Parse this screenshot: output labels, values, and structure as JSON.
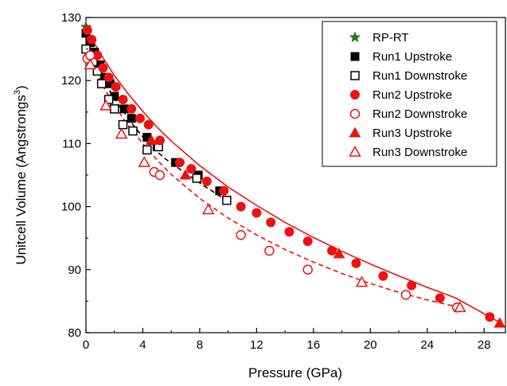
{
  "chart_data": {
    "type": "scatter",
    "title": "",
    "xlabel": "Pressure (GPa)",
    "ylabel_main": "Unitcell Volume (Angstrongs",
    "ylabel_sup": "3",
    "ylabel_tail": ")",
    "xlim": [
      0,
      29.5
    ],
    "ylim": [
      80,
      130
    ],
    "x_ticks": [
      0,
      4,
      8,
      12,
      16,
      20,
      24,
      28
    ],
    "y_ticks": [
      80,
      90,
      100,
      110,
      120,
      130
    ],
    "grid": false,
    "legend_position": "top-right",
    "series": [
      {
        "name": "RP-RT",
        "marker": "star",
        "filled": true,
        "color": "#1a7f1a",
        "x": [
          0.0
        ],
        "y": [
          128.5
        ]
      },
      {
        "name": "Run1 Upstroke",
        "marker": "square",
        "filled": true,
        "color": "#000000",
        "x": [
          0.0,
          0.3,
          0.6,
          1.0,
          1.3,
          1.7,
          2.0,
          2.7,
          3.2,
          4.3,
          5.0,
          6.3,
          7.9,
          9.4
        ],
        "y": [
          127.5,
          126.0,
          124.5,
          122.5,
          120.5,
          119.5,
          117.5,
          115.5,
          114.0,
          111.0,
          109.5,
          107.0,
          105.0,
          102.5
        ]
      },
      {
        "name": "Run1 Downstroke",
        "marker": "square",
        "filled": false,
        "color": "#000000",
        "x": [
          0.0,
          0.5,
          0.8,
          1.1,
          1.6,
          2.0,
          2.6,
          3.3,
          4.3,
          5.1,
          7.8,
          9.9
        ],
        "y": [
          125.0,
          123.0,
          121.5,
          119.5,
          117.0,
          115.5,
          113.0,
          112.0,
          109.0,
          109.5,
          104.5,
          101.0
        ]
      },
      {
        "name": "Run2 Upstroke",
        "marker": "circle",
        "filled": true,
        "color": "#ee1111",
        "x": [
          0.1,
          0.4,
          0.8,
          1.2,
          1.6,
          2.1,
          2.6,
          3.2,
          3.8,
          4.4,
          5.2,
          6.6,
          7.4,
          8.5,
          9.7,
          10.9,
          12.0,
          13.0,
          14.3,
          15.6,
          17.3,
          19.0,
          20.9,
          22.9,
          24.9,
          26.1,
          28.4
        ],
        "y": [
          128.0,
          126.5,
          124.0,
          122.0,
          120.5,
          119.0,
          117.0,
          115.5,
          114.0,
          113.0,
          110.5,
          107.0,
          106.0,
          104.0,
          102.5,
          100.0,
          99.0,
          97.5,
          96.0,
          94.5,
          93.0,
          91.0,
          89.0,
          87.5,
          85.5,
          84.0,
          82.5
        ]
      },
      {
        "name": "Run2 Downstroke",
        "marker": "circle",
        "filled": false,
        "color": "#ee1111",
        "x": [
          0.1,
          0.3,
          4.8,
          5.2,
          10.9,
          12.9,
          15.6,
          22.5,
          26.1
        ],
        "y": [
          123.5,
          124.0,
          105.5,
          105.0,
          95.5,
          93.0,
          90.0,
          86.0,
          84.0
        ]
      },
      {
        "name": "Run3 Upstroke",
        "marker": "triangle",
        "filled": true,
        "color": "#ee1111",
        "x": [
          4.6,
          7.0,
          17.8,
          29.1
        ],
        "y": [
          110.5,
          105.0,
          92.5,
          81.5
        ]
      },
      {
        "name": "Run3 Downstroke",
        "marker": "triangle",
        "filled": false,
        "color": "#ee1111",
        "x": [
          0.3,
          1.4,
          2.5,
          4.1,
          8.6,
          19.4,
          26.3
        ],
        "y": [
          122.5,
          116.0,
          111.5,
          107.0,
          99.5,
          88.0,
          84.0
        ]
      }
    ],
    "fit_curves": [
      {
        "color": "#ee1111",
        "style": "solid",
        "x": [
          0,
          0.5,
          1,
          2,
          3,
          4,
          5,
          6,
          8,
          10,
          12,
          14,
          16,
          18,
          20,
          22,
          24,
          26,
          28,
          29.2
        ],
        "y": [
          128.5,
          126.3,
          124.3,
          120.8,
          117.8,
          115.1,
          112.6,
          110.4,
          106.5,
          103.1,
          100.2,
          97.5,
          95.1,
          92.9,
          90.9,
          89.0,
          87.2,
          85.5,
          83.0,
          81.5
        ]
      },
      {
        "color": "#ee1111",
        "style": "dashed",
        "x": [
          0,
          0.5,
          1,
          2,
          3,
          4,
          5,
          6,
          8,
          10,
          12,
          14,
          16,
          18,
          20,
          22,
          24,
          26.3
        ],
        "y": [
          125.0,
          122.3,
          119.9,
          116.0,
          112.8,
          110.0,
          107.4,
          105.1,
          101.3,
          98.2,
          95.5,
          93.2,
          91.2,
          89.4,
          87.8,
          86.4,
          85.2,
          84.0
        ]
      },
      {
        "color": "#000000",
        "style": "dashed",
        "x": [
          0,
          0.8,
          1.5,
          2.4,
          3.3,
          4.3,
          5.5,
          7.0,
          8.5,
          9.9
        ],
        "y": [
          125.0,
          121.8,
          119.0,
          115.8,
          113.0,
          110.2,
          107.7,
          105.3,
          103.0,
          101.0
        ]
      }
    ]
  }
}
